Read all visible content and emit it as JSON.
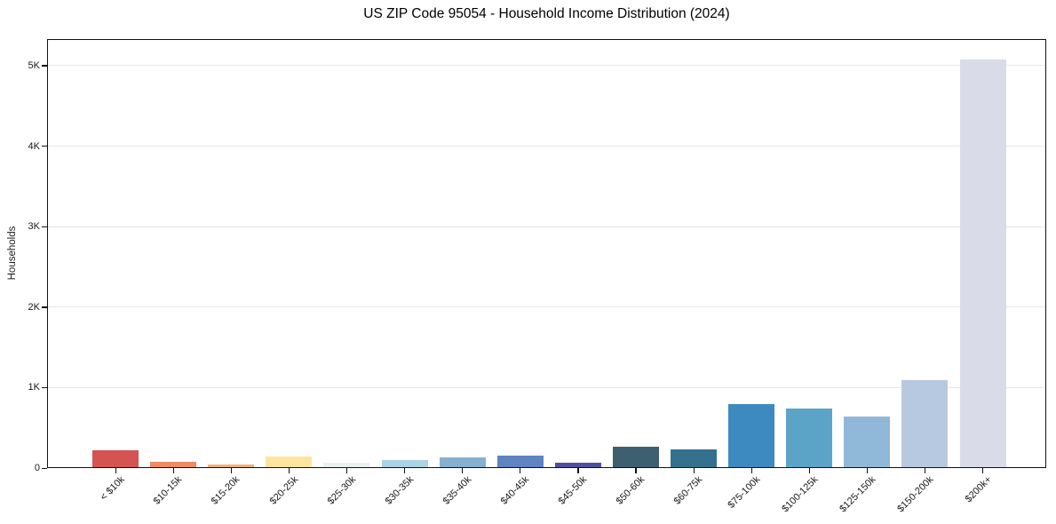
{
  "chart_data": {
    "type": "bar",
    "title": "US ZIP Code 95054 - Household Income Distribution (2024)",
    "xlabel": "",
    "ylabel": "Households",
    "categories": [
      "< $10k",
      "$10-15k",
      "$15-20k",
      "$20-25k",
      "$25-30k",
      "$30-35k",
      "$35-40k",
      "$40-45k",
      "$45-50k",
      "$50-60k",
      "$60-75k",
      "$75-100k",
      "$100-125k",
      "$125-150k",
      "$150-200k",
      "$200k+"
    ],
    "values": [
      225,
      80,
      40,
      140,
      70,
      95,
      130,
      150,
      70,
      260,
      230,
      800,
      745,
      640,
      1090,
      5080
    ],
    "bar_colors": [
      "#d35450",
      "#ef8a62",
      "#eeb479",
      "#fde5a0",
      "#e6f1f0",
      "#abd3e2",
      "#86b0d2",
      "#6083c1",
      "#4f519e",
      "#3d5f70",
      "#33718f",
      "#3d8ac0",
      "#5ba4c8",
      "#90b8d9",
      "#b7c8e1",
      "#d9dbe8"
    ],
    "y_ticks": [
      {
        "value": 0,
        "label": "0"
      },
      {
        "value": 1000,
        "label": "1K"
      },
      {
        "value": 2000,
        "label": "2K"
      },
      {
        "value": 3000,
        "label": "3K"
      },
      {
        "value": 4000,
        "label": "4K"
      },
      {
        "value": 5000,
        "label": "5K"
      }
    ],
    "ylim": [
      0,
      5331
    ],
    "grid": "horizontal",
    "legend": "none"
  },
  "colors": {
    "background": "#ffffff",
    "grid": "#e7e7ea",
    "spine": "#111111",
    "text": "#1a1a1a"
  }
}
